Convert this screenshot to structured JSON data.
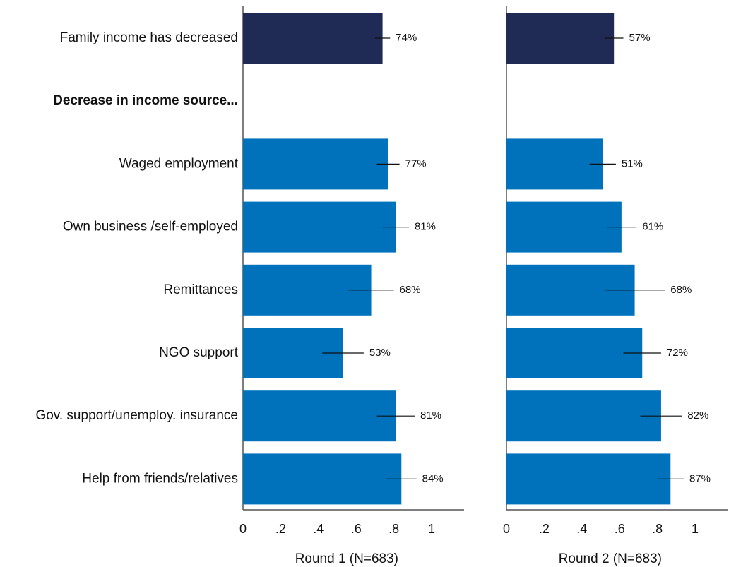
{
  "chart_data": {
    "type": "bar",
    "orientation": "horizontal",
    "categories": [
      "Family income has decreased",
      "Decrease in income source...",
      "Waged employment",
      "Own business /self-employed",
      "Remittances",
      "NGO support",
      "Gov. support/unemploy. insurance",
      "Help from friends/relatives"
    ],
    "header_categories": [
      "Decrease in income source..."
    ],
    "xlim": [
      0,
      1
    ],
    "xticks": [
      "0",
      ".2",
      ".4",
      ".6",
      ".8",
      "1"
    ],
    "xtick_values": [
      0,
      0.2,
      0.4,
      0.6,
      0.8,
      1
    ],
    "grid": false,
    "legend": "none",
    "panels": [
      {
        "xlabel": "Round 1 (N=683)",
        "values": [
          0.74,
          null,
          0.77,
          0.81,
          0.68,
          0.53,
          0.81,
          0.84
        ],
        "labels": [
          "74%",
          "",
          "77%",
          "81%",
          "68%",
          "53%",
          "81%",
          "84%"
        ],
        "ci_low": [
          0.7,
          null,
          0.71,
          0.74,
          0.56,
          0.42,
          0.71,
          0.76
        ],
        "ci_high": [
          0.78,
          null,
          0.83,
          0.88,
          0.8,
          0.64,
          0.91,
          0.92
        ],
        "bar_colors": [
          "#1f2a55",
          null,
          "#0072bc",
          "#0072bc",
          "#0072bc",
          "#0072bc",
          "#0072bc",
          "#0072bc"
        ]
      },
      {
        "xlabel": "Round 2 (N=683)",
        "values": [
          0.57,
          null,
          0.51,
          0.61,
          0.68,
          0.72,
          0.82,
          0.87
        ],
        "labels": [
          "57%",
          "",
          "51%",
          "61%",
          "68%",
          "72%",
          "82%",
          "87%"
        ],
        "ci_low": [
          0.52,
          null,
          0.44,
          0.53,
          0.52,
          0.62,
          0.71,
          0.8
        ],
        "ci_high": [
          0.62,
          null,
          0.58,
          0.69,
          0.84,
          0.82,
          0.93,
          0.94
        ],
        "bar_colors": [
          "#1f2a55",
          null,
          "#0072bc",
          "#0072bc",
          "#0072bc",
          "#0072bc",
          "#0072bc",
          "#0072bc"
        ]
      }
    ]
  }
}
